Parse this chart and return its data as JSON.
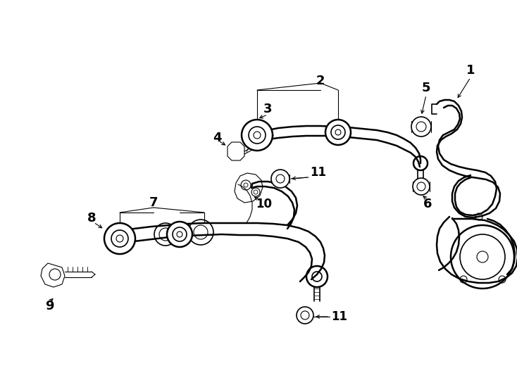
{
  "bg_color": "#ffffff",
  "fig_width": 7.34,
  "fig_height": 5.4,
  "dpi": 100,
  "image_data": "target_embedded"
}
